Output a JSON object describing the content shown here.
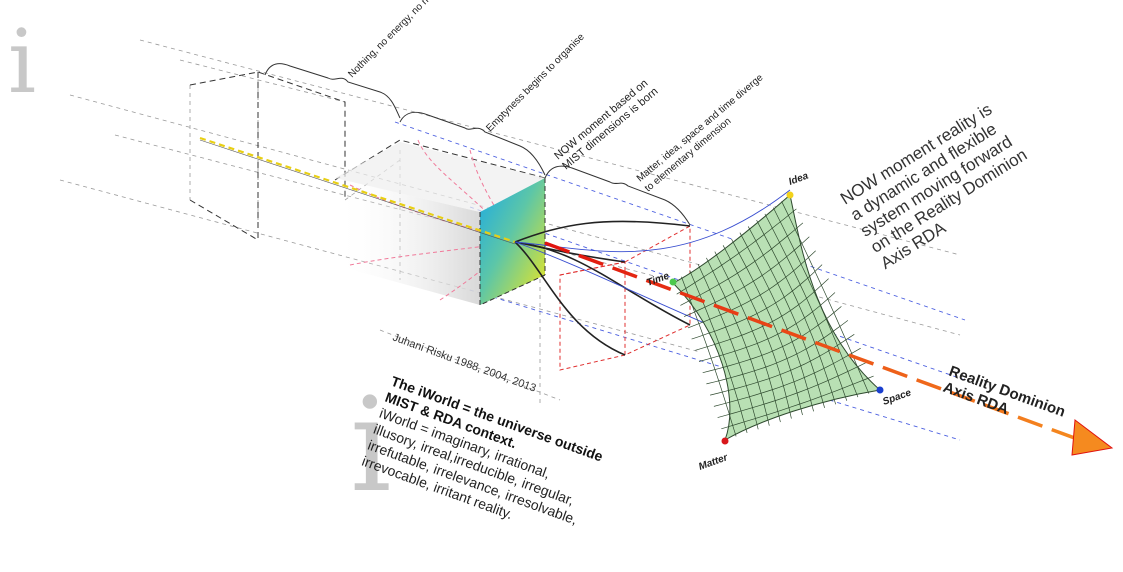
{
  "logo": {
    "glyph": "i"
  },
  "stages": {
    "nothing": "Nothing, no energy, no nothing",
    "emptyness": "Emptyness begins to organise",
    "now_line1": "NOW moment based on",
    "now_line2": "MIST dimensions is born",
    "matter_line1": "Matter, idea, space and time diverge",
    "matter_line2": "to elementary dimension"
  },
  "note": {
    "line1": "NOW moment reality is",
    "line2": "a dynamic and flexible",
    "line3": "system moving forward",
    "line4": "on the Reality Dominion",
    "line5": "Axis RDA"
  },
  "points": {
    "idea": "Idea",
    "time": "Time",
    "space": "Space",
    "matter": "Matter"
  },
  "axis": {
    "line1": "Reality Dominion",
    "line2": "Axis  RDA"
  },
  "credit": "Juhani Risku 1988, 2004, 2013",
  "iworld": {
    "title1": "The iWorld = the universe outside",
    "title2": "MIST & RDA context.",
    "body1": "iWorld  = imaginary, irrational,",
    "body2": "illusory, irreal,irreducible, irregular,",
    "body3": "irrefutable, irrelevance, irresolvable,",
    "body4": "irrevocable, irritant reality."
  },
  "colors": {
    "idea_dot": "#f2d21b",
    "time_dot": "#4cc94c",
    "space_dot": "#1a3fcf",
    "matter_dot": "#d8171b",
    "axis": "#e0120f",
    "mesh_fill": "#b9e0b4",
    "mesh_line": "#2f4a2f"
  }
}
